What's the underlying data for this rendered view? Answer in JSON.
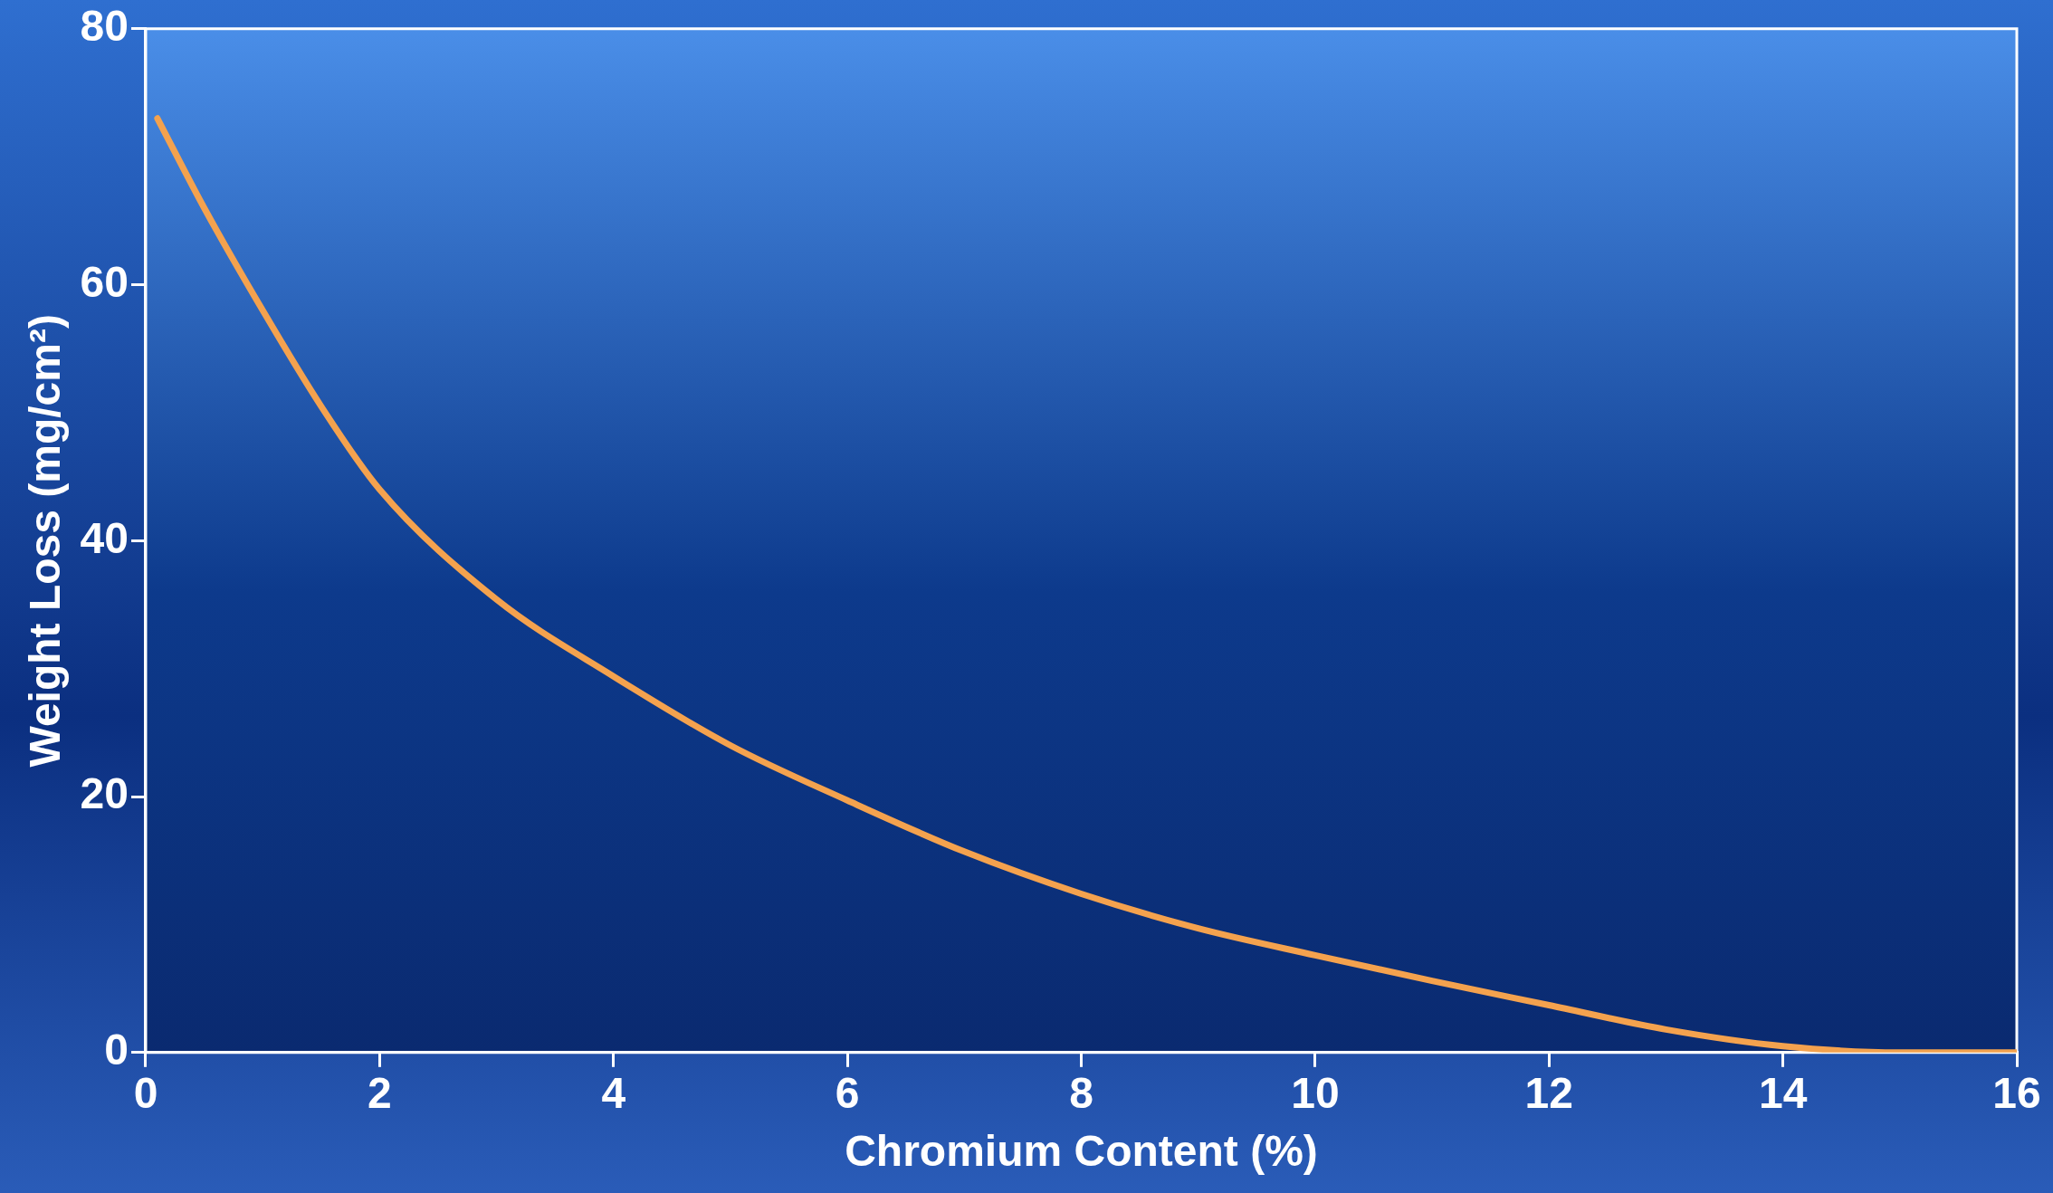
{
  "chart_data": {
    "type": "line",
    "xlabel": "Chromium Content (%)",
    "ylabel": "Weight Loss (mg/cm²)",
    "x": [
      0.1,
      0.5,
      1,
      1.5,
      2,
      3,
      4,
      5,
      6,
      7,
      8,
      9,
      10,
      11,
      12,
      13,
      14,
      15,
      16
    ],
    "series": [
      {
        "color": "#f4a24e",
        "values": [
          73,
          66,
          58,
          50.5,
          44,
          35.4,
          29.4,
          24,
          19.7,
          15.7,
          12.4,
          9.7,
          7.6,
          5.6,
          3.7,
          1.8,
          0.5,
          0,
          0
        ]
      }
    ],
    "xlim": [
      0,
      16
    ],
    "xticks": [
      0,
      2,
      4,
      6,
      8,
      10,
      12,
      14,
      16
    ],
    "ylim": [
      0,
      80
    ],
    "yticks": [
      0,
      20,
      40,
      60,
      80
    ],
    "grid": false,
    "legend": false,
    "marker": "none",
    "line_style": "solid"
  }
}
